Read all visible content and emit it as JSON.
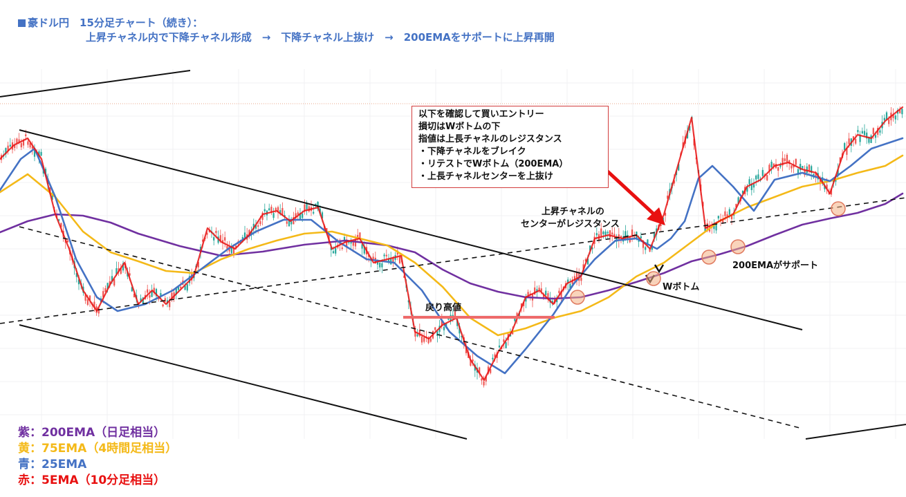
{
  "header": {
    "line1": "豪ドル円　15分足チャート（続き）：",
    "line2": "上昇チャネル内で下降チャネル形成　→　下降チャネル上抜け　→　200EMAをサポートに上昇再開"
  },
  "legend": {
    "purple": "紫：200EMA（日足相当）",
    "yellow": "黄：75EMA（4時間足相当）",
    "blue": "青：25EMA",
    "red": "赤：5EMA（10分足相当）"
  },
  "note": {
    "lines": [
      "以下を確認して買いエントリー",
      "損切はWボトムの下",
      "指値は上長チャネルのレジスタンス",
      "・下降チャネルをブレイク",
      "・リテストでWボトム（200EMA）",
      "・上長チャネルセンターを上抜け"
    ]
  },
  "annotations": {
    "resistance_line1": "上昇チャネルの",
    "resistance_line2": "センターがレジスタンス",
    "pullback_high": "戻り高値",
    "w_bottom": "Wボトム",
    "support": "200EMAがサポート"
  },
  "colors": {
    "ema200": "#7030a0",
    "ema75": "#f4b918",
    "ema25": "#4472c4",
    "ema5": "#e81010",
    "candle_up": "#26a69a",
    "candle_down": "#ef5350",
    "marker_fill": "#f4b183",
    "marker_stroke": "#e07a5f",
    "arrow": "#e81010"
  },
  "chart_data": {
    "type": "line",
    "instrument": "豪ドル円",
    "timeframe": "15分足",
    "series": [
      {
        "name": "紫：200EMA（日足相当）",
        "color": "#7030a0",
        "x": [
          0,
          40,
          80,
          120,
          160,
          200,
          260,
          320,
          380,
          440,
          500,
          560,
          600,
          640,
          680,
          720,
          760,
          800,
          840,
          880,
          920,
          960,
          1000,
          1040,
          1080,
          1120,
          1160,
          1200,
          1240,
          1280,
          1305
        ],
        "y": [
          336,
          320,
          310,
          312,
          322,
          338,
          356,
          370,
          364,
          354,
          348,
          355,
          365,
          390,
          410,
          422,
          430,
          432,
          430,
          420,
          408,
          395,
          378,
          368,
          356,
          340,
          325,
          316,
          308,
          295,
          280
        ]
      },
      {
        "name": "黄：75EMA（4時間足相当）",
        "color": "#f4b918",
        "x": [
          0,
          40,
          80,
          120,
          160,
          200,
          240,
          280,
          320,
          360,
          400,
          440,
          480,
          520,
          560,
          600,
          640,
          680,
          720,
          760,
          800,
          840,
          880,
          920,
          960,
          1000,
          1040,
          1080,
          1120,
          1160,
          1200,
          1240,
          1280,
          1305
        ],
        "y": [
          278,
          252,
          285,
          335,
          365,
          378,
          392,
          395,
          375,
          360,
          348,
          338,
          335,
          345,
          355,
          380,
          415,
          460,
          485,
          475,
          460,
          450,
          430,
          400,
          380,
          350,
          320,
          300,
          285,
          270,
          262,
          250,
          240,
          225
        ]
      },
      {
        "name": "青：25EMA",
        "color": "#4472c4",
        "x": [
          0,
          30,
          50,
          80,
          110,
          140,
          170,
          210,
          250,
          290,
          330,
          370,
          410,
          450,
          490,
          530,
          570,
          610,
          650,
          690,
          730,
          760,
          800,
          830,
          860,
          890,
          920,
          950,
          970,
          990,
          1010,
          1030,
          1060,
          1090,
          1120,
          1160,
          1200,
          1230,
          1260,
          1305
        ],
        "y": [
          275,
          230,
          215,
          285,
          375,
          430,
          450,
          440,
          420,
          390,
          360,
          335,
          318,
          318,
          350,
          375,
          380,
          420,
          480,
          515,
          540,
          505,
          455,
          410,
          375,
          348,
          345,
          360,
          345,
          320,
          258,
          240,
          270,
          305,
          260,
          250,
          262,
          240,
          215,
          200
        ]
      },
      {
        "name": "赤：5EMA（10分足相当）",
        "color": "#e81010",
        "x": [
          0,
          20,
          40,
          60,
          80,
          100,
          120,
          140,
          160,
          180,
          200,
          220,
          240,
          260,
          280,
          300,
          320,
          340,
          360,
          380,
          400,
          420,
          440,
          460,
          480,
          500,
          520,
          540,
          560,
          580,
          600,
          620,
          640,
          660,
          680,
          700,
          720,
          740,
          760,
          780,
          800,
          820,
          840,
          860,
          880,
          900,
          920,
          940,
          960,
          980,
          1000,
          1020,
          1040,
          1060,
          1080,
          1100,
          1120,
          1140,
          1160,
          1180,
          1200,
          1220,
          1240,
          1260,
          1280,
          1305
        ],
        "y": [
          230,
          210,
          200,
          230,
          310,
          360,
          420,
          450,
          410,
          380,
          440,
          420,
          440,
          420,
          400,
          330,
          350,
          360,
          340,
          310,
          305,
          320,
          305,
          300,
          360,
          350,
          345,
          380,
          375,
          370,
          480,
          490,
          470,
          460,
          520,
          550,
          510,
          480,
          430,
          420,
          440,
          410,
          400,
          345,
          340,
          345,
          340,
          360,
          310,
          240,
          170,
          330,
          320,
          310,
          270,
          260,
          240,
          235,
          245,
          250,
          280,
          220,
          195,
          200,
          175,
          155
        ]
      }
    ]
  }
}
